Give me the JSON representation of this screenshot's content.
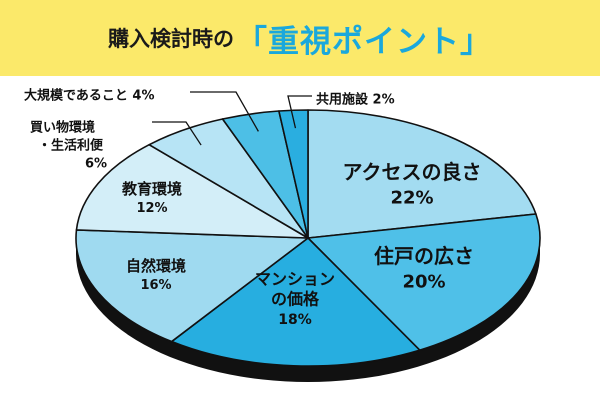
{
  "title": {
    "prefix": "購入検討時の",
    "highlight": "「重視ポイント」"
  },
  "chart_data": {
    "type": "pie",
    "title": "購入検討時の「重視ポイント」",
    "slices": [
      {
        "label": "アクセスの良さ",
        "lines": [
          "アクセスの良さ"
        ],
        "value": 22,
        "value_text": "22%",
        "color": "#a3dcf1"
      },
      {
        "label": "住戸の広さ",
        "lines": [
          "住戸の広さ"
        ],
        "value": 20,
        "value_text": "20%",
        "color": "#4fc0e8"
      },
      {
        "label": "マンションの価格",
        "lines": [
          "マンション",
          "の価格"
        ],
        "value": 18,
        "value_text": "18%",
        "color": "#27aee0"
      },
      {
        "label": "自然環境",
        "lines": [
          "自然環境"
        ],
        "value": 16,
        "value_text": "16%",
        "color": "#9fdaf0"
      },
      {
        "label": "教育環境",
        "lines": [
          "教育環境"
        ],
        "value": 12,
        "value_text": "12%",
        "color": "#d3eef8"
      },
      {
        "label": "買い物環境・生活利便",
        "lines": [
          "買い物環境",
          "・生活利便"
        ],
        "value": 6,
        "value_text": "6%",
        "color": "#b7e4f5"
      },
      {
        "label": "大規模であること",
        "lines": [
          "大規模であること"
        ],
        "value": 4,
        "value_text": "4%",
        "color": "#4dbfe6"
      },
      {
        "label": "共用施設",
        "lines": [
          "共用施設"
        ],
        "value": 2,
        "value_text": "2%",
        "color": "#2aaee0"
      }
    ],
    "inside_label_slices": [
      "アクセスの良さ",
      "住戸の広さ",
      "マンションの価格",
      "自然環境",
      "教育環境"
    ],
    "callout_slices": [
      "買い物環境・生活利便",
      "大規模であること",
      "共用施設"
    ],
    "start_angle": "12 o'clock",
    "direction": "clockwise",
    "style": "3d-tilted",
    "legend": "none"
  }
}
